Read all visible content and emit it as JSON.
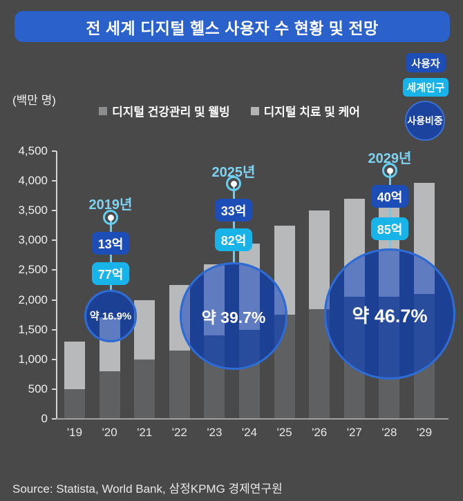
{
  "title": "전 세계 디지털 헬스 사용자 수 현황 및 전망",
  "unit_label": "(백만 명)",
  "side_badges": [
    {
      "label": "사용자"
    },
    {
      "label": "세계인구"
    },
    {
      "label": "사용비중"
    }
  ],
  "legend": [
    {
      "label": "디지털 건강관리 및 웰빙",
      "color": "#8b8d8f"
    },
    {
      "label": "디지털 치료 및 케어",
      "color": "#b2b4b6"
    }
  ],
  "source": "Source: Statista, World Bank, 삼정KPMG 경제연구원",
  "colors": {
    "background": "#494949",
    "banner_blue": "#2a61cb",
    "badge_blue": "#1d4db6",
    "badge_cyan": "#18b4e9",
    "big_circle_fill": "#1b4094",
    "big_circle_border": "#2e6bd2",
    "bar_dark": "#5e6062",
    "bar_light": "#b7b9bb",
    "overlay_bar_dark": "#2a4c9c",
    "overlay_bar_light": "#5f7cc0",
    "callout_cyan": "#66cef2",
    "year_text_cyan": "#7dd3f1"
  },
  "chart_data": {
    "type": "bar",
    "stacked": true,
    "title": "전 세계 디지털 헬스 사용자 수 현황 및 전망",
    "ylabel": "(백만 명)",
    "xlabel": "",
    "grid": false,
    "legend_position": "top-center",
    "categories": [
      "'19",
      "'20",
      "'21",
      "'22",
      "'23",
      "'24",
      "'25",
      "'26",
      "'27",
      "'28",
      "'29"
    ],
    "series": [
      {
        "name": "디지털 건강관리 및 웰빙",
        "color": "#5e6062",
        "values": [
          500,
          800,
          1000,
          1150,
          1400,
          1500,
          1750,
          1850,
          2050,
          2050,
          2100
        ]
      },
      {
        "name": "디지털 치료 및 케어",
        "color": "#b7b9bb",
        "values": [
          800,
          900,
          1000,
          1100,
          1200,
          1450,
          1500,
          1650,
          1650,
          1800,
          1870
        ]
      }
    ],
    "totals": [
      1300,
      1700,
      2000,
      2250,
      2600,
      2950,
      3250,
      3500,
      3700,
      3850,
      3970
    ],
    "ylim": [
      0,
      4500
    ],
    "ytick_step": 500,
    "ytick_labels": [
      "0",
      "500",
      "1,000",
      "1,500",
      "2,000",
      "2,500",
      "3,000",
      "3,500",
      "4,000",
      "4,500"
    ],
    "annotations": [
      {
        "year": "2019년",
        "users": "13억",
        "world_population": "77억",
        "share": "약 16.9%"
      },
      {
        "year": "2025년",
        "users": "33억",
        "world_population": "82억",
        "share": "약 39.7%"
      },
      {
        "year": "2029년",
        "users": "40억",
        "world_population": "85억",
        "share": "약 46.7%"
      }
    ]
  }
}
